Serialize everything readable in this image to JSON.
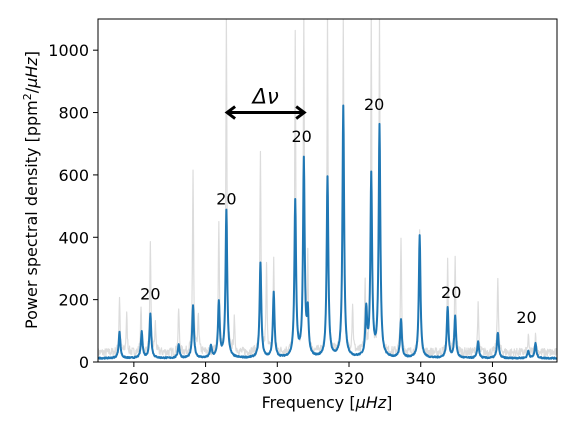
{
  "chart_data": {
    "type": "line",
    "xlabel_main": "Frequency [",
    "xlabel_unit": "μHz",
    "xlabel_end": "]",
    "ylabel_main": "Power spectral density [ppm",
    "ylabel_sup": "2",
    "ylabel_slash": "/",
    "ylabel_unit": "μHz",
    "ylabel_end": "]",
    "xlim": [
      250,
      378
    ],
    "ylim": [
      0,
      1100
    ],
    "x_ticks": [
      260,
      280,
      300,
      320,
      340,
      360
    ],
    "y_ticks": [
      0,
      200,
      400,
      600,
      800,
      1000
    ],
    "grid": false,
    "colors": {
      "smoothed": "#1f77b4",
      "raw": "#dcdcdc",
      "axes": "#000000"
    },
    "series": [
      {
        "role": "raw spectrum (grey)",
        "baseline": 30,
        "peaks": [
          [
            256,
            210
          ],
          [
            258,
            150
          ],
          [
            262,
            170
          ],
          [
            264.6,
            370
          ],
          [
            266,
            120
          ],
          [
            272.5,
            170
          ],
          [
            276.5,
            615
          ],
          [
            278,
            150
          ],
          [
            283.7,
            440
          ],
          [
            285.8,
            1100
          ],
          [
            288,
            130
          ],
          [
            295.3,
            665
          ],
          [
            297,
            300
          ],
          [
            299,
            330
          ],
          [
            305,
            1045
          ],
          [
            307.4,
            1100
          ],
          [
            308.5,
            320
          ],
          [
            314,
            1100
          ],
          [
            318.4,
            1100
          ],
          [
            321,
            180
          ],
          [
            324.5,
            250
          ],
          [
            326.2,
            1100
          ],
          [
            328.5,
            1100
          ],
          [
            334.5,
            390
          ],
          [
            339.7,
            420
          ],
          [
            347.5,
            320
          ],
          [
            349.6,
            330
          ],
          [
            356,
            180
          ],
          [
            361.5,
            280
          ],
          [
            370,
            80
          ],
          [
            372,
            90
          ]
        ]
      },
      {
        "role": "smoothed spectrum (blue)",
        "baseline": 12,
        "peaks": [
          [
            256,
            95
          ],
          [
            262.2,
            95
          ],
          [
            264.6,
            155
          ],
          [
            272.5,
            55
          ],
          [
            276.5,
            180
          ],
          [
            281.5,
            50
          ],
          [
            283.7,
            190
          ],
          [
            285.8,
            485
          ],
          [
            295.3,
            315
          ],
          [
            299,
            220
          ],
          [
            305,
            512
          ],
          [
            307.4,
            640
          ],
          [
            308.5,
            145
          ],
          [
            314,
            588
          ],
          [
            318.4,
            817
          ],
          [
            324.8,
            160
          ],
          [
            326.2,
            593
          ],
          [
            328.5,
            752
          ],
          [
            334.5,
            135
          ],
          [
            339.7,
            405
          ],
          [
            347.5,
            175
          ],
          [
            349.6,
            145
          ],
          [
            356,
            65
          ],
          [
            361.5,
            95
          ],
          [
            370,
            35
          ],
          [
            372,
            60
          ]
        ]
      }
    ],
    "annotations": [
      {
        "text": "20",
        "x": 264.6,
        "y": 200
      },
      {
        "text": "20",
        "x": 285.8,
        "y": 505
      },
      {
        "text": "20",
        "x": 306.8,
        "y": 705
      },
      {
        "text": "20",
        "x": 327.0,
        "y": 808
      },
      {
        "text": "20",
        "x": 348.5,
        "y": 205
      },
      {
        "text": "20",
        "x": 369.5,
        "y": 125
      }
    ],
    "delta_nu": {
      "label": "Δν",
      "x_start": 286,
      "x_end": 307.5,
      "y": 800
    }
  }
}
